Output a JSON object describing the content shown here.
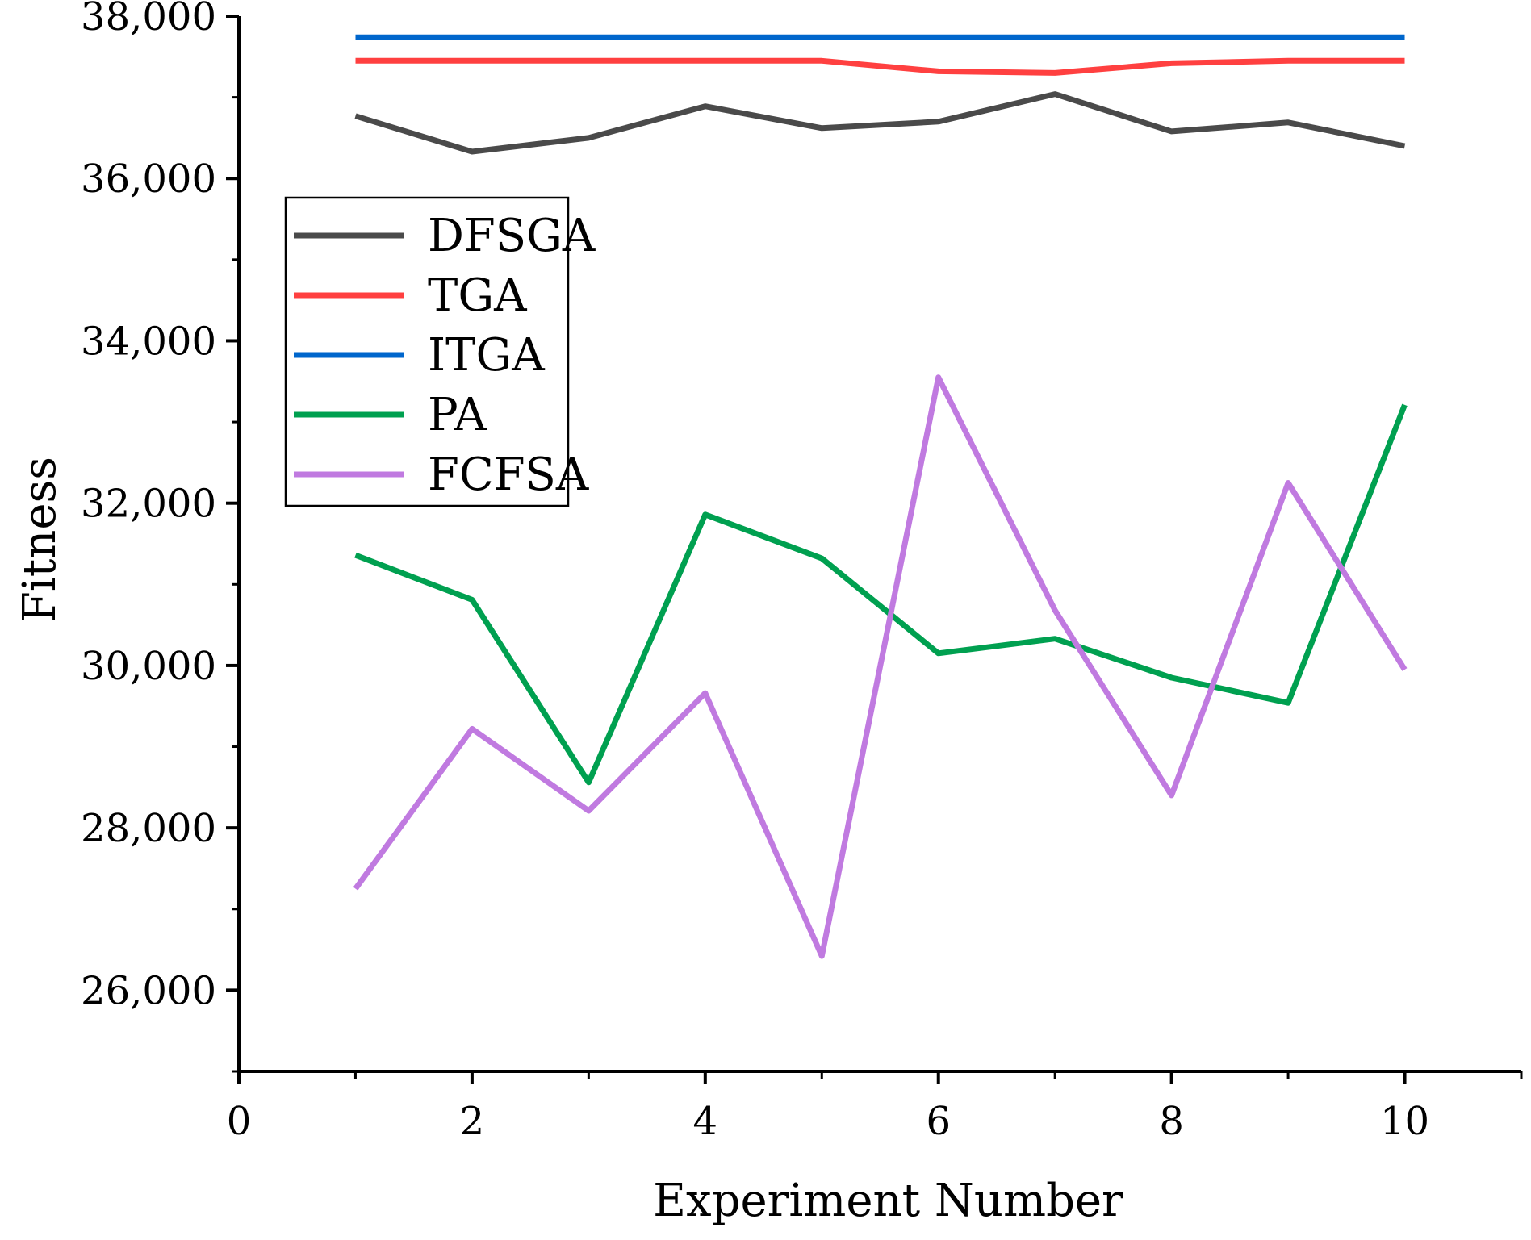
{
  "chart_data": {
    "type": "line",
    "title": "",
    "xlabel": "Experiment Number",
    "ylabel": "Fitness",
    "xlim": [
      0,
      11
    ],
    "ylim": [
      25000,
      38000
    ],
    "x_ticks": [
      0,
      2,
      4,
      6,
      8,
      10
    ],
    "x_tick_labels": [
      "0",
      "2",
      "4",
      "6",
      "8",
      "10"
    ],
    "y_ticks": [
      26000,
      28000,
      30000,
      32000,
      34000,
      36000,
      38000
    ],
    "y_tick_labels": [
      "26,000",
      "28,000",
      "30,000",
      "32,000",
      "34,000",
      "36,000",
      "38,000"
    ],
    "grid": false,
    "legend_position": "upper-left",
    "x": [
      1,
      2,
      3,
      4,
      5,
      6,
      7,
      8,
      9,
      10
    ],
    "series": [
      {
        "name": "DFSGA",
        "color": "#4a4a4a",
        "values": [
          36770,
          36330,
          36500,
          36890,
          36620,
          36700,
          37040,
          36580,
          36690,
          36400
        ]
      },
      {
        "name": "TGA",
        "color": "#ff4040",
        "values": [
          37450,
          37450,
          37450,
          37450,
          37450,
          37320,
          37300,
          37420,
          37450,
          37450
        ]
      },
      {
        "name": "ITGA",
        "color": "#0066cc",
        "values": [
          37740,
          37740,
          37740,
          37740,
          37740,
          37740,
          37740,
          37740,
          37740,
          37740
        ]
      },
      {
        "name": "PA",
        "color": "#00a050",
        "values": [
          31360,
          30810,
          28560,
          31860,
          31320,
          30150,
          30330,
          29850,
          29540,
          33210
        ]
      },
      {
        "name": "FCFSA",
        "color": "#c07ae0",
        "values": [
          27250,
          29220,
          28210,
          29660,
          26420,
          33550,
          30680,
          28400,
          32250,
          29950
        ]
      }
    ]
  }
}
